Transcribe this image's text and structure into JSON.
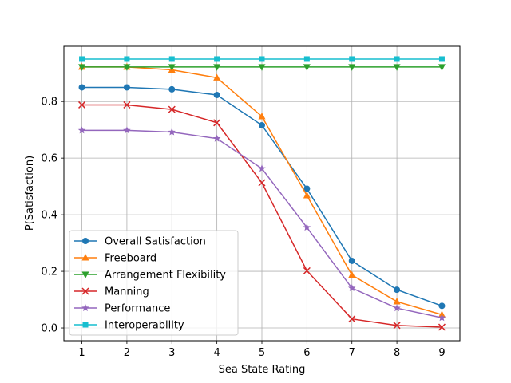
{
  "chart_data": {
    "type": "line",
    "xlabel": "Sea State Rating",
    "ylabel": "P(Satisfaction)",
    "x": [
      1,
      2,
      3,
      4,
      5,
      6,
      7,
      8,
      9
    ],
    "xlim": [
      0.6,
      9.4
    ],
    "ylim": [
      -0.045,
      0.995
    ],
    "xticks": [
      "1",
      "2",
      "3",
      "4",
      "5",
      "6",
      "7",
      "8",
      "9"
    ],
    "yticks": [
      0.0,
      0.2,
      0.4,
      0.6,
      0.8
    ],
    "ytick_labels": [
      "0.0",
      "0.2",
      "0.4",
      "0.6",
      "0.8"
    ],
    "grid": true,
    "legend_position": "lower-left",
    "series": [
      {
        "name": "Overall Satisfaction",
        "color": "#1f77b4",
        "marker": "circle",
        "values": [
          0.85,
          0.85,
          0.843,
          0.823,
          0.716,
          0.492,
          0.237,
          0.135,
          0.078
        ]
      },
      {
        "name": "Freeboard",
        "color": "#ff7f0e",
        "marker": "triangle-up",
        "values": [
          0.922,
          0.922,
          0.912,
          0.884,
          0.747,
          0.468,
          0.187,
          0.093,
          0.047
        ]
      },
      {
        "name": "Arrangement Flexibility",
        "color": "#2ca02c",
        "marker": "triangle-down",
        "values": [
          0.922,
          0.922,
          0.922,
          0.922,
          0.922,
          0.922,
          0.922,
          0.922,
          0.922
        ]
      },
      {
        "name": "Manning",
        "color": "#d62728",
        "marker": "x",
        "values": [
          0.788,
          0.788,
          0.772,
          0.725,
          0.513,
          0.202,
          0.032,
          0.009,
          0.003
        ]
      },
      {
        "name": "Performance",
        "color": "#9467bd",
        "marker": "star",
        "values": [
          0.698,
          0.698,
          0.692,
          0.669,
          0.563,
          0.355,
          0.141,
          0.07,
          0.036
        ]
      },
      {
        "name": "Interoperability",
        "color": "#17becf",
        "marker": "square",
        "values": [
          0.95,
          0.95,
          0.95,
          0.95,
          0.95,
          0.95,
          0.95,
          0.95,
          0.95
        ]
      }
    ]
  }
}
